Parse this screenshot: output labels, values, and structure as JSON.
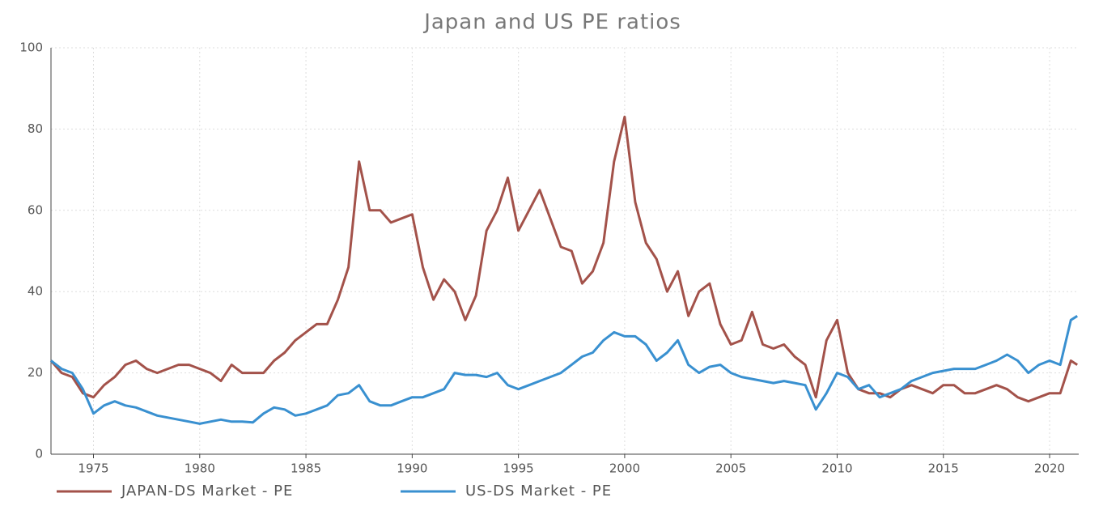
{
  "chart_data": {
    "type": "line",
    "title": "Japan and US PE ratios",
    "x": [
      1973,
      1973.5,
      1974,
      1974.5,
      1975,
      1975.5,
      1976,
      1976.5,
      1977,
      1977.5,
      1978,
      1978.5,
      1979,
      1979.5,
      1980,
      1980.5,
      1981,
      1981.5,
      1982,
      1982.5,
      1983,
      1983.5,
      1984,
      1984.5,
      1985,
      1985.5,
      1986,
      1986.5,
      1987,
      1987.5,
      1988,
      1988.5,
      1989,
      1989.5,
      1990,
      1990.5,
      1991,
      1991.5,
      1992,
      1992.5,
      1993,
      1993.5,
      1994,
      1994.5,
      1995,
      1995.5,
      1996,
      1996.5,
      1997,
      1997.5,
      1998,
      1998.5,
      1999,
      1999.5,
      2000,
      2000.5,
      2001,
      2001.5,
      2002,
      2002.5,
      2003,
      2003.5,
      2004,
      2004.5,
      2005,
      2005.5,
      2006,
      2006.5,
      2007,
      2007.5,
      2008,
      2008.5,
      2009,
      2009.5,
      2010,
      2010.5,
      2011,
      2011.5,
      2012,
      2012.5,
      2013,
      2013.5,
      2014,
      2014.5,
      2015,
      2015.5,
      2016,
      2016.5,
      2017,
      2017.5,
      2018,
      2018.5,
      2019,
      2019.5,
      2020,
      2020.5,
      2021,
      2021.3
    ],
    "series": [
      {
        "name": "JAPAN-DS Market - PE",
        "color": "#a3524a",
        "values": [
          23,
          20,
          19,
          15,
          14,
          17,
          19,
          22,
          23,
          21,
          20,
          21,
          22,
          22,
          21,
          20,
          18,
          22,
          20,
          20,
          20,
          23,
          25,
          28,
          30,
          32,
          32,
          38,
          46,
          72,
          60,
          60,
          57,
          58,
          59,
          46,
          38,
          43,
          40,
          33,
          39,
          55,
          60,
          68,
          55,
          60,
          65,
          58,
          51,
          50,
          42,
          45,
          52,
          72,
          83,
          62,
          52,
          48,
          40,
          45,
          34,
          40,
          42,
          32,
          27,
          28,
          35,
          27,
          26,
          27,
          24,
          22,
          14,
          28,
          33,
          20,
          16,
          15,
          15,
          14,
          16,
          17,
          16,
          15,
          17,
          17,
          15,
          15,
          16,
          17,
          16,
          14,
          13,
          14,
          15,
          15,
          23,
          22
        ]
      },
      {
        "name": "US-DS Market - PE",
        "color": "#3990d0",
        "values": [
          23,
          21,
          20,
          16,
          10,
          12,
          13,
          12,
          11.5,
          10.5,
          9.5,
          9,
          8.5,
          8,
          7.5,
          8,
          8.5,
          8,
          8,
          7.8,
          10,
          11.5,
          11,
          9.5,
          10,
          11,
          12,
          14.5,
          15,
          17,
          13,
          12,
          12,
          13,
          14,
          14,
          15,
          16,
          20,
          19.5,
          19.5,
          19,
          20,
          17,
          16,
          17,
          18,
          19,
          20,
          22,
          24,
          25,
          28,
          30,
          29,
          29,
          27,
          23,
          25,
          28,
          22,
          20,
          21.5,
          22,
          20,
          19,
          18.5,
          18,
          17.5,
          18,
          17.5,
          17,
          11,
          15,
          20,
          19,
          16,
          17,
          14,
          15,
          16,
          18,
          19,
          20,
          20.5,
          21,
          21,
          21,
          22,
          23,
          24.5,
          23,
          20,
          22,
          23,
          22,
          33,
          34
        ]
      }
    ],
    "xlim": [
      1973,
      2021.37
    ],
    "xticks": [
      1975,
      1980,
      1985,
      1990,
      1995,
      2000,
      2005,
      2010,
      2015,
      2020
    ],
    "ylim": [
      0,
      100
    ],
    "yticks": [
      0,
      20,
      40,
      60,
      80,
      100
    ],
    "grid": true
  }
}
